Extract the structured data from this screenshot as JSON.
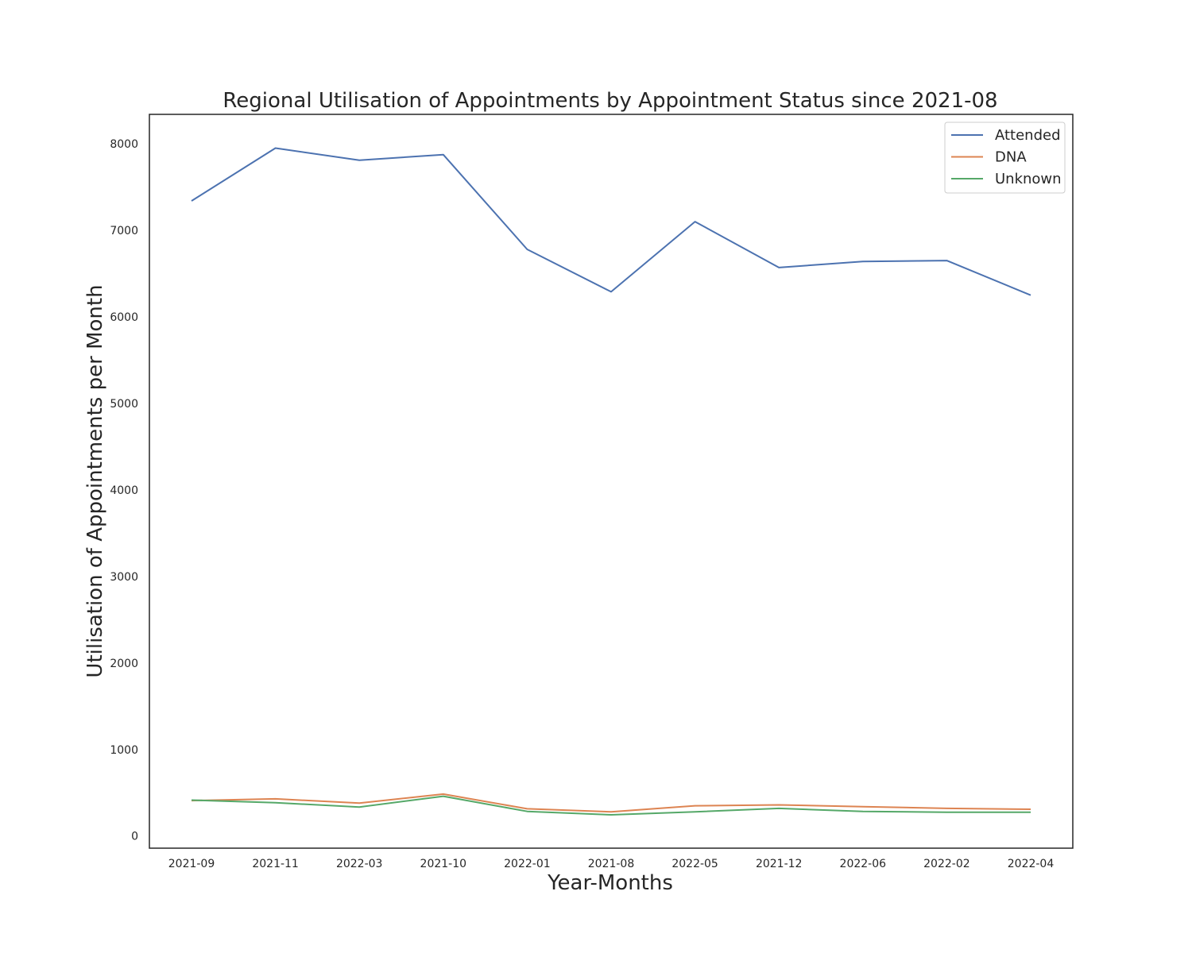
{
  "chart_data": {
    "type": "line",
    "title": "Regional Utilisation of Appointments by Appointment Status since 2021-08",
    "xlabel": "Year-Months",
    "ylabel": "Utilisation of Appointments per Month",
    "categories": [
      "2021-09",
      "2021-11",
      "2022-03",
      "2021-10",
      "2022-01",
      "2021-08",
      "2022-05",
      "2021-12",
      "2022-06",
      "2022-02",
      "2022-04"
    ],
    "ylim": [
      -140,
      8340
    ],
    "yticks": [
      0,
      1000,
      2000,
      3000,
      4000,
      5000,
      6000,
      7000,
      8000
    ],
    "grid": false,
    "legend_position": "top-right",
    "series": [
      {
        "name": "Attended",
        "color": "#4c72b0",
        "values": [
          7340,
          7950,
          7810,
          7875,
          6780,
          6290,
          7100,
          6570,
          6640,
          6650,
          6250
        ]
      },
      {
        "name": "DNA",
        "color": "#dd8452",
        "values": [
          410,
          430,
          380,
          485,
          315,
          280,
          350,
          360,
          340,
          320,
          310
        ]
      },
      {
        "name": "Unknown",
        "color": "#55a868",
        "values": [
          415,
          385,
          335,
          460,
          285,
          245,
          280,
          320,
          285,
          275,
          275
        ]
      }
    ]
  }
}
